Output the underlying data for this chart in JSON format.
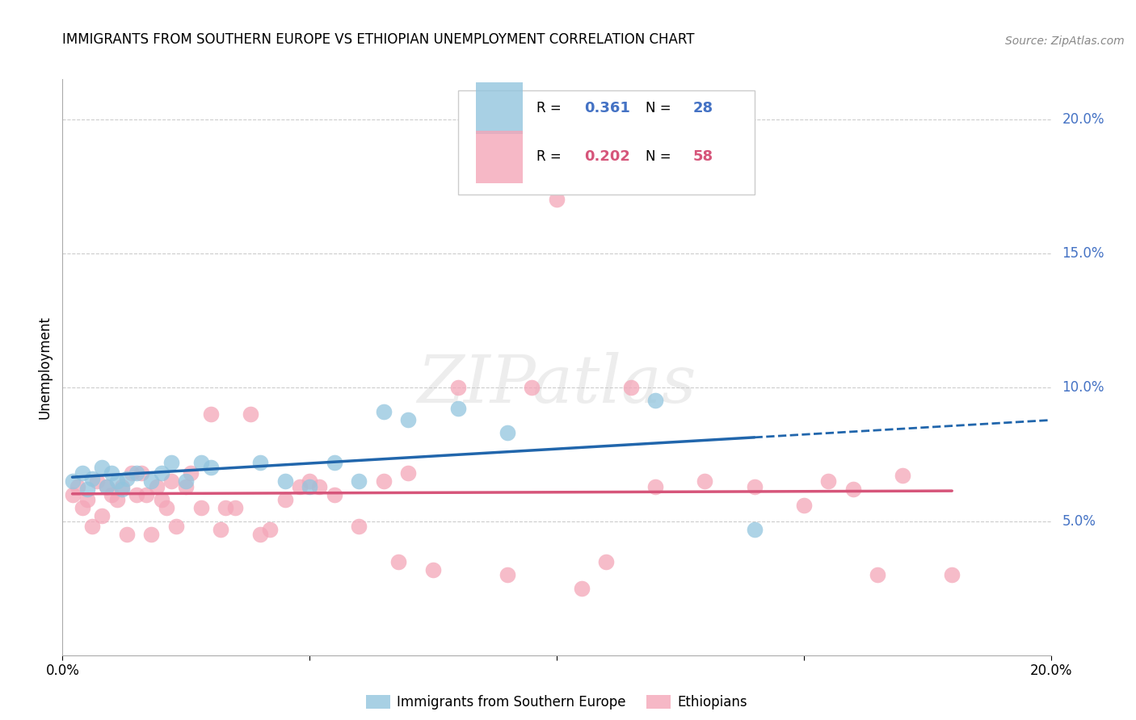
{
  "title": "IMMIGRANTS FROM SOUTHERN EUROPE VS ETHIOPIAN UNEMPLOYMENT CORRELATION CHART",
  "source": "Source: ZipAtlas.com",
  "ylabel": "Unemployment",
  "xlim": [
    0.0,
    0.2
  ],
  "ylim": [
    0.0,
    0.215
  ],
  "yticks": [
    0.05,
    0.1,
    0.15,
    0.2
  ],
  "ytick_labels": [
    "5.0%",
    "10.0%",
    "15.0%",
    "20.0%"
  ],
  "blue_R": "0.361",
  "blue_N": "28",
  "pink_R": "0.202",
  "pink_N": "58",
  "blue_color": "#92c5de",
  "pink_color": "#f4a6b8",
  "blue_line_color": "#2166ac",
  "pink_line_color": "#d6557a",
  "blue_points_x": [
    0.002,
    0.004,
    0.005,
    0.006,
    0.008,
    0.009,
    0.01,
    0.011,
    0.012,
    0.013,
    0.015,
    0.018,
    0.02,
    0.022,
    0.025,
    0.028,
    0.03,
    0.04,
    0.045,
    0.05,
    0.055,
    0.06,
    0.065,
    0.07,
    0.08,
    0.09,
    0.12,
    0.14
  ],
  "blue_points_y": [
    0.065,
    0.068,
    0.062,
    0.066,
    0.07,
    0.063,
    0.068,
    0.065,
    0.062,
    0.066,
    0.068,
    0.065,
    0.068,
    0.072,
    0.065,
    0.072,
    0.07,
    0.072,
    0.065,
    0.063,
    0.072,
    0.065,
    0.091,
    0.088,
    0.092,
    0.083,
    0.095,
    0.047
  ],
  "pink_points_x": [
    0.002,
    0.003,
    0.004,
    0.005,
    0.006,
    0.007,
    0.008,
    0.009,
    0.01,
    0.011,
    0.012,
    0.013,
    0.014,
    0.015,
    0.016,
    0.017,
    0.018,
    0.019,
    0.02,
    0.021,
    0.022,
    0.023,
    0.025,
    0.026,
    0.028,
    0.03,
    0.032,
    0.033,
    0.035,
    0.038,
    0.04,
    0.042,
    0.045,
    0.048,
    0.05,
    0.052,
    0.055,
    0.06,
    0.065,
    0.068,
    0.07,
    0.075,
    0.08,
    0.09,
    0.095,
    0.1,
    0.105,
    0.11,
    0.115,
    0.12,
    0.13,
    0.14,
    0.15,
    0.155,
    0.16,
    0.165,
    0.17,
    0.18
  ],
  "pink_points_y": [
    0.06,
    0.063,
    0.055,
    0.058,
    0.048,
    0.065,
    0.052,
    0.063,
    0.06,
    0.058,
    0.063,
    0.045,
    0.068,
    0.06,
    0.068,
    0.06,
    0.045,
    0.063,
    0.058,
    0.055,
    0.065,
    0.048,
    0.063,
    0.068,
    0.055,
    0.09,
    0.047,
    0.055,
    0.055,
    0.09,
    0.045,
    0.047,
    0.058,
    0.063,
    0.065,
    0.063,
    0.06,
    0.048,
    0.065,
    0.035,
    0.068,
    0.032,
    0.1,
    0.03,
    0.1,
    0.17,
    0.025,
    0.035,
    0.1,
    0.063,
    0.065,
    0.063,
    0.056,
    0.065,
    0.062,
    0.03,
    0.067,
    0.03
  ]
}
